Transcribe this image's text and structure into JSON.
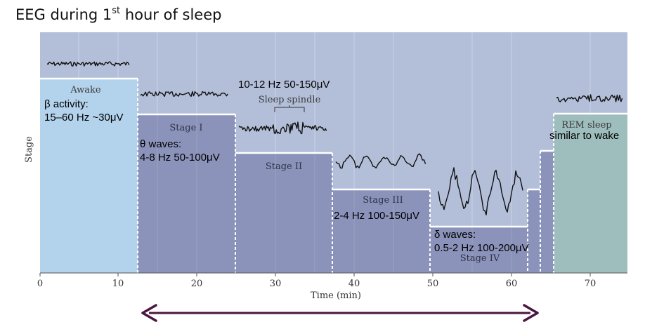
{
  "title": {
    "main": "EEG during 1",
    "sup": "st",
    "rest": " hour of sleep"
  },
  "y_axis_label": "Stage",
  "x_axis_label": "Time (min)",
  "x_ticks": [
    "0",
    "10",
    "20",
    "30",
    "40",
    "50",
    "60",
    "70"
  ],
  "stages": {
    "awake": "Awake",
    "stage1": "Stage I",
    "stage2": "Stage II",
    "stage3": "Stage III",
    "stage4": "Stage IV",
    "rem": "REM sleep"
  },
  "annotations": {
    "beta_line1": "β activity:",
    "beta_line2": "15–60 Hz ~30μV",
    "theta_line1": "θ waves:",
    "theta_line2": "4-8 Hz 50-100μV",
    "spindle_freq": "10-12 Hz 50-150μV",
    "spindle_label": "Sleep spindle",
    "stage3_freq": "2-4 Hz 100-150μV",
    "delta_line1": "δ waves:",
    "delta_line2": "0.5-2 Hz 100-200μV",
    "rem_note": "similar to wake"
  },
  "colors": {
    "background_panel": "#b3bfd9",
    "awake": "#b3d2ec",
    "nrem": "#8b93ba",
    "rem": "#9ebdbd",
    "arrow": "#4a1640"
  }
}
